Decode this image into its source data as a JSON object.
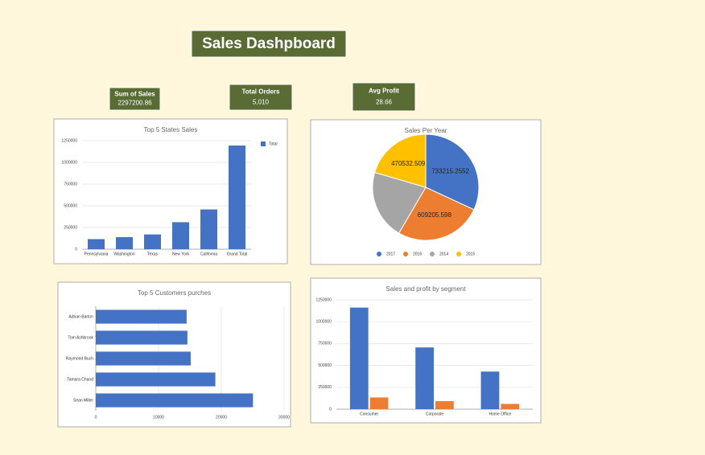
{
  "title": "Sales Dashpboard",
  "kpis": [
    {
      "label": "Sum of Sales",
      "value": "2297200.86"
    },
    {
      "label": "Total Orders",
      "value": "5,010"
    },
    {
      "label": "Avg Profit",
      "value": "28.66"
    }
  ],
  "chart_data": [
    {
      "type": "bar",
      "title": "Top 5 States Sales",
      "categories": [
        "Pennsylvania",
        "Washington",
        "Texas",
        "New York",
        "California",
        "Grand Total"
      ],
      "series": [
        {
          "name": "Total",
          "color": "#4472c4",
          "values": [
            116000,
            139000,
            170000,
            311000,
            458000,
            1194000
          ]
        }
      ],
      "ylim": [
        0,
        1250000
      ],
      "yticks": [
        0,
        250000,
        500000,
        750000,
        1000000,
        1250000
      ],
      "grid": true,
      "legend": "right"
    },
    {
      "type": "pie",
      "title": "Sales Per Year",
      "categories": [
        "2017",
        "2016",
        "2014",
        "2015"
      ],
      "colors": [
        "#4472c4",
        "#ed7d31",
        "#a5a5a5",
        "#ffc000"
      ],
      "values": [
        733215.2552,
        609205.598,
        484247.4978,
        470532.509
      ],
      "value_labels": [
        "733215.2552",
        "609205.598",
        null,
        "470532.509"
      ],
      "legend": "bottom"
    },
    {
      "type": "hbar",
      "title": "Top 5 Customers purches",
      "categories": [
        "Adrian Barton",
        "Tom Ashbrook",
        "Raymond Buch",
        "Tamara Chand",
        "Sean Miller"
      ],
      "values": [
        14474,
        14596,
        15117,
        19052,
        25043
      ],
      "color": "#4472c4",
      "xlim": [
        0,
        30000
      ],
      "xticks": [
        0,
        10000,
        20000,
        30000
      ],
      "grid": true
    },
    {
      "type": "bar",
      "title": "Sales and profit by segment",
      "categories": [
        "Consumer",
        "Corporate",
        "Home Office"
      ],
      "series": [
        {
          "color": "#4472c4",
          "values": [
            1161401,
            706146,
            429653
          ]
        },
        {
          "color": "#ed7d31",
          "values": [
            134119,
            91979,
            60299
          ]
        }
      ],
      "ylim": [
        0,
        1250000
      ],
      "yticks": [
        0,
        250000,
        500000,
        750000,
        1000000,
        1250000
      ],
      "grid": true
    }
  ]
}
